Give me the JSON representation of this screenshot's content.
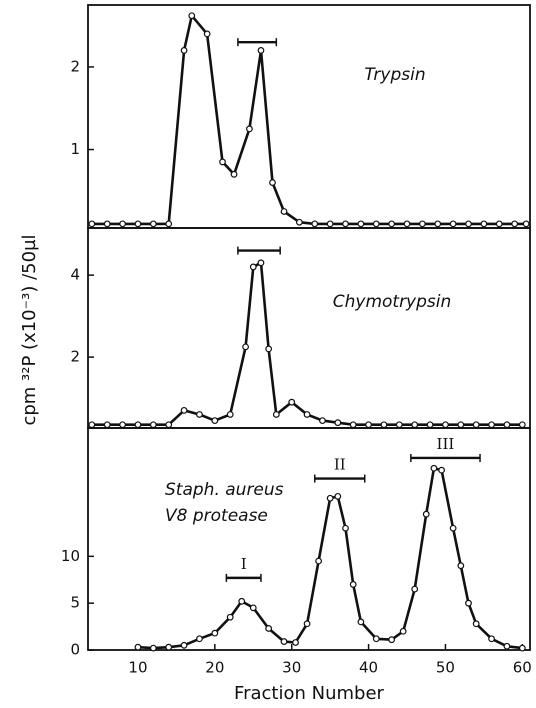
{
  "chart_data": [
    {
      "type": "line",
      "annotation": [
        "Trypsin"
      ],
      "color": "#111111",
      "xlim": [
        3.5,
        61
      ],
      "ylim": [
        0.05,
        2.75
      ],
      "yticks": [
        1,
        2
      ],
      "x": [
        4,
        6,
        8,
        10,
        12,
        14,
        16,
        17,
        19,
        21,
        22.5,
        24.5,
        26,
        27.5,
        29,
        31,
        33,
        35,
        37,
        39,
        41,
        43,
        45,
        47,
        49,
        51,
        53,
        55,
        57,
        59,
        60.5
      ],
      "values": [
        0.1,
        0.1,
        0.1,
        0.1,
        0.1,
        0.1,
        2.2,
        2.62,
        2.4,
        0.85,
        0.7,
        1.25,
        2.2,
        0.6,
        0.25,
        0.12,
        0.1,
        0.1,
        0.1,
        0.1,
        0.1,
        0.1,
        0.1,
        0.1,
        0.1,
        0.1,
        0.1,
        0.1,
        0.1,
        0.1,
        0.1
      ],
      "ranges": [
        {
          "x": [
            23,
            28
          ],
          "y": 2.3
        }
      ]
    },
    {
      "type": "line",
      "annotation": [
        "Chymotrypsin"
      ],
      "color": "#111111",
      "ylabel": "cpm ³²P (x10⁻³) /50µl",
      "xlim": [
        3.5,
        61
      ],
      "ylim": [
        0.27,
        5.15
      ],
      "yticks": [
        2,
        4
      ],
      "x": [
        4,
        6,
        8,
        10,
        12,
        14,
        16,
        18,
        20,
        22,
        24,
        25,
        26,
        27,
        28,
        30,
        32,
        34,
        36,
        38,
        40,
        42,
        44,
        46,
        48,
        50,
        52,
        54,
        56,
        58,
        60
      ],
      "values": [
        0.35,
        0.35,
        0.35,
        0.35,
        0.35,
        0.35,
        0.7,
        0.6,
        0.45,
        0.6,
        2.25,
        4.2,
        4.3,
        2.2,
        0.6,
        0.9,
        0.6,
        0.45,
        0.4,
        0.35,
        0.35,
        0.35,
        0.35,
        0.35,
        0.35,
        0.35,
        0.35,
        0.35,
        0.35,
        0.35,
        0.35
      ],
      "ranges": [
        {
          "x": [
            23,
            28.5
          ],
          "y": 4.6
        }
      ]
    },
    {
      "type": "line",
      "annotation": [
        "Staph. aureus",
        "V8 protease"
      ],
      "color": "#111111",
      "xlabel": "Fraction Number",
      "xlim": [
        3.5,
        61
      ],
      "xticks": [
        10,
        20,
        30,
        40,
        50,
        60
      ],
      "ylim": [
        0,
        23.7
      ],
      "yticks": [
        0,
        5,
        10
      ],
      "x": [
        10,
        12,
        14,
        16,
        18,
        20,
        22,
        23.5,
        25,
        27,
        29,
        30.5,
        32,
        33.5,
        35,
        36,
        37,
        38,
        39,
        41,
        43,
        44.5,
        46,
        47.5,
        48.5,
        49.5,
        51,
        52,
        53,
        54,
        56,
        58,
        60
      ],
      "values": [
        0.3,
        0.2,
        0.3,
        0.5,
        1.2,
        1.8,
        3.5,
        5.2,
        4.5,
        2.3,
        0.9,
        0.8,
        2.8,
        9.5,
        16.2,
        16.4,
        13,
        7,
        3,
        1.2,
        1.1,
        2,
        6.5,
        14.5,
        19.4,
        19.2,
        13,
        9,
        5,
        2.8,
        1.2,
        0.4,
        0.2
      ],
      "ranges": [
        {
          "x": [
            21.5,
            26
          ],
          "y": 7.7,
          "label": "I"
        },
        {
          "x": [
            33,
            39.5
          ],
          "y": 18.3,
          "label": "II"
        },
        {
          "x": [
            45.5,
            54.5
          ],
          "y": 20.5,
          "label": "III"
        }
      ]
    }
  ]
}
